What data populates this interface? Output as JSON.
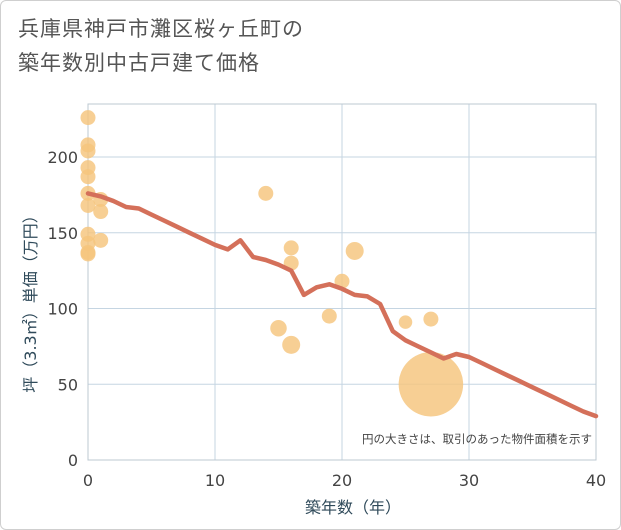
{
  "title": {
    "line1": "兵庫県神戸市灘区桜ヶ丘町の",
    "line2": "築年数別中古戸建て価格"
  },
  "chart_data": {
    "type": "scatter",
    "title": "兵庫県神戸市灘区桜ヶ丘町の築年数別中古戸建て価格",
    "xlabel": "築年数（年）",
    "ylabel": "坪（3.3㎡）単価（万円）",
    "xlim": [
      0,
      40
    ],
    "ylim": [
      0,
      235
    ],
    "x_ticks": [
      0,
      10,
      20,
      30,
      40
    ],
    "y_ticks": [
      0,
      50,
      100,
      150,
      200
    ],
    "grid": true,
    "note": "円の大きさは、取引のあった物件面積を示す",
    "colors": {
      "scatter": "#f5c47c",
      "trend": "#d4705a",
      "grid": "#c5d5e2",
      "frame": "#bcc8d2"
    },
    "scatter": [
      {
        "x": 0,
        "y": 226,
        "size": 1
      },
      {
        "x": 0,
        "y": 208,
        "size": 1
      },
      {
        "x": 0,
        "y": 204,
        "size": 1
      },
      {
        "x": 0,
        "y": 193,
        "size": 1
      },
      {
        "x": 0,
        "y": 187,
        "size": 1
      },
      {
        "x": 0,
        "y": 176,
        "size": 1
      },
      {
        "x": 0,
        "y": 168,
        "size": 1
      },
      {
        "x": 0,
        "y": 149,
        "size": 1
      },
      {
        "x": 0,
        "y": 143,
        "size": 1
      },
      {
        "x": 0,
        "y": 137,
        "size": 1
      },
      {
        "x": 0,
        "y": 136,
        "size": 1
      },
      {
        "x": 1,
        "y": 172,
        "size": 1
      },
      {
        "x": 1,
        "y": 164,
        "size": 1
      },
      {
        "x": 1,
        "y": 145,
        "size": 1
      },
      {
        "x": 14,
        "y": 176,
        "size": 1
      },
      {
        "x": 15,
        "y": 87,
        "size": 1.1
      },
      {
        "x": 16,
        "y": 140,
        "size": 1
      },
      {
        "x": 16,
        "y": 130,
        "size": 1
      },
      {
        "x": 16,
        "y": 76,
        "size": 1.2
      },
      {
        "x": 19,
        "y": 95,
        "size": 1
      },
      {
        "x": 20,
        "y": 118,
        "size": 1
      },
      {
        "x": 21,
        "y": 138,
        "size": 1.2
      },
      {
        "x": 25,
        "y": 91,
        "size": 0.9
      },
      {
        "x": 27,
        "y": 93,
        "size": 1
      },
      {
        "x": 27,
        "y": 50,
        "size": 4.3
      }
    ],
    "trend": {
      "x": [
        0,
        1,
        2,
        3,
        4,
        5,
        6,
        7,
        8,
        9,
        10,
        11,
        12,
        13,
        14,
        15,
        16,
        17,
        18,
        19,
        20,
        21,
        22,
        23,
        24,
        25,
        26,
        27,
        28,
        29,
        30,
        31,
        32,
        33,
        34,
        35,
        36,
        37,
        38,
        39,
        40
      ],
      "y": [
        176,
        174,
        171,
        167,
        166,
        162,
        158,
        154,
        150,
        146,
        142,
        139,
        145,
        134,
        132,
        129,
        125,
        109,
        114,
        116,
        113,
        109,
        108,
        103,
        85,
        79,
        75,
        71,
        67,
        70,
        68,
        64,
        60,
        56,
        52,
        48,
        44,
        40,
        36,
        32,
        29
      ]
    }
  }
}
